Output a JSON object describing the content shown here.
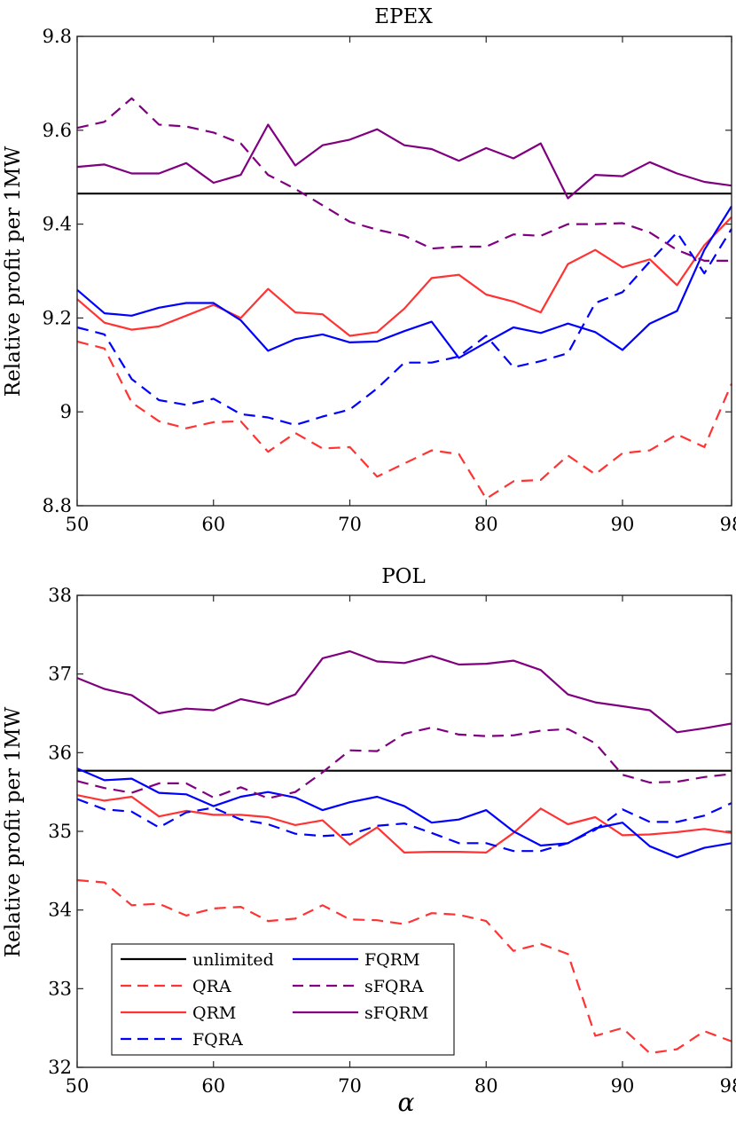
{
  "chart_data": [
    {
      "type": "line",
      "title": "EPEX",
      "xlabel": "",
      "ylabel": "Relative profit per 1MW",
      "xlim": [
        50,
        98
      ],
      "ylim": [
        8.8,
        9.8
      ],
      "xticks": [
        50,
        60,
        70,
        80,
        90,
        98
      ],
      "yticks": [
        8.8,
        9,
        9.2,
        9.4,
        9.6,
        9.8
      ],
      "xtick_labels": [
        "50",
        "60",
        "70",
        "80",
        "90",
        "98"
      ],
      "ytick_labels": [
        "8.8",
        "9",
        "9.2",
        "9.4",
        "9.6",
        "9.8"
      ],
      "x": [
        50,
        52,
        54,
        56,
        58,
        60,
        62,
        64,
        66,
        68,
        70,
        72,
        74,
        76,
        78,
        80,
        82,
        84,
        86,
        88,
        90,
        92,
        94,
        96,
        98
      ],
      "series": [
        {
          "name": "unlimited",
          "color": "#000000",
          "style": "solid",
          "values": [
            9.465,
            9.465,
            9.465,
            9.465,
            9.465,
            9.465,
            9.465,
            9.465,
            9.465,
            9.465,
            9.465,
            9.465,
            9.465,
            9.465,
            9.465,
            9.465,
            9.465,
            9.465,
            9.465,
            9.465,
            9.465,
            9.465,
            9.465,
            9.465,
            9.465
          ]
        },
        {
          "name": "QRA",
          "color": "#ff3333",
          "style": "dashed",
          "values": [
            9.15,
            9.135,
            9.02,
            8.98,
            8.965,
            8.978,
            8.98,
            8.915,
            8.955,
            8.922,
            8.925,
            8.862,
            8.89,
            8.918,
            8.91,
            8.815,
            8.852,
            8.855,
            8.907,
            8.867,
            8.912,
            8.918,
            8.952,
            8.925,
            9.06
          ]
        },
        {
          "name": "QRM",
          "color": "#ff3333",
          "style": "solid",
          "values": [
            9.24,
            9.19,
            9.175,
            9.182,
            9.205,
            9.228,
            9.2,
            9.262,
            9.212,
            9.208,
            9.162,
            9.17,
            9.22,
            9.285,
            9.292,
            9.25,
            9.235,
            9.212,
            9.315,
            9.345,
            9.308,
            9.325,
            9.27,
            9.355,
            9.415
          ]
        },
        {
          "name": "FQRA",
          "color": "#0000ff",
          "style": "dashed",
          "values": [
            9.18,
            9.165,
            9.07,
            9.025,
            9.015,
            9.028,
            8.995,
            8.988,
            8.972,
            8.99,
            9.005,
            9.05,
            9.105,
            9.105,
            9.118,
            9.162,
            9.095,
            9.108,
            9.125,
            9.232,
            9.255,
            9.32,
            9.382,
            9.295,
            9.39
          ]
        },
        {
          "name": "FQRM",
          "color": "#0000ff",
          "style": "solid",
          "values": [
            9.26,
            9.21,
            9.205,
            9.222,
            9.232,
            9.232,
            9.195,
            9.13,
            9.155,
            9.165,
            9.148,
            9.15,
            9.172,
            9.192,
            9.115,
            9.148,
            9.18,
            9.168,
            9.188,
            9.17,
            9.132,
            9.188,
            9.215,
            9.345,
            9.438
          ]
        },
        {
          "name": "sFQRA",
          "color": "#800080",
          "style": "dashed",
          "values": [
            9.605,
            9.618,
            9.668,
            9.612,
            9.608,
            9.595,
            9.572,
            9.505,
            9.475,
            9.44,
            9.405,
            9.388,
            9.375,
            9.348,
            9.352,
            9.352,
            9.378,
            9.375,
            9.4,
            9.4,
            9.402,
            9.382,
            9.345,
            9.322,
            9.322
          ]
        },
        {
          "name": "sFQRM",
          "color": "#800080",
          "style": "solid",
          "values": [
            9.522,
            9.527,
            9.508,
            9.508,
            9.53,
            9.488,
            9.505,
            9.612,
            9.525,
            9.568,
            9.58,
            9.602,
            9.568,
            9.56,
            9.535,
            9.562,
            9.54,
            9.572,
            9.455,
            9.505,
            9.502,
            9.532,
            9.508,
            9.49,
            9.482
          ]
        }
      ]
    },
    {
      "type": "line",
      "title": "POL",
      "xlabel": "α",
      "ylabel": "Relative profit per 1MW",
      "xlim": [
        50,
        98
      ],
      "ylim": [
        32,
        38
      ],
      "xticks": [
        50,
        60,
        70,
        80,
        90,
        98
      ],
      "yticks": [
        32,
        33,
        34,
        35,
        36,
        37,
        38
      ],
      "xtick_labels": [
        "50",
        "60",
        "70",
        "80",
        "90",
        "98"
      ],
      "ytick_labels": [
        "32",
        "33",
        "34",
        "35",
        "36",
        "37",
        "38"
      ],
      "legend_position": "bottom-left",
      "x": [
        50,
        52,
        54,
        56,
        58,
        60,
        62,
        64,
        66,
        68,
        70,
        72,
        74,
        76,
        78,
        80,
        82,
        84,
        86,
        88,
        90,
        92,
        94,
        96,
        98
      ],
      "series": [
        {
          "name": "unlimited",
          "color": "#000000",
          "style": "solid",
          "values": [
            35.77,
            35.77,
            35.77,
            35.77,
            35.77,
            35.77,
            35.77,
            35.77,
            35.77,
            35.77,
            35.77,
            35.77,
            35.77,
            35.77,
            35.77,
            35.77,
            35.77,
            35.77,
            35.77,
            35.77,
            35.77,
            35.77,
            35.77,
            35.77,
            35.77
          ]
        },
        {
          "name": "QRA",
          "color": "#ff3333",
          "style": "dashed",
          "values": [
            34.38,
            34.35,
            34.06,
            34.08,
            33.93,
            34.02,
            34.04,
            33.86,
            33.89,
            34.06,
            33.88,
            33.87,
            33.82,
            33.96,
            33.94,
            33.86,
            33.48,
            33.57,
            33.44,
            32.4,
            32.5,
            32.18,
            32.23,
            32.46,
            32.33
          ]
        },
        {
          "name": "QRM",
          "color": "#ff3333",
          "style": "solid",
          "values": [
            35.46,
            35.39,
            35.44,
            35.19,
            35.26,
            35.21,
            35.21,
            35.18,
            35.08,
            35.14,
            34.83,
            35.05,
            34.73,
            34.74,
            34.74,
            34.73,
            34.98,
            35.29,
            35.09,
            35.18,
            34.95,
            34.96,
            34.99,
            35.03,
            34.98
          ]
        },
        {
          "name": "FQRA",
          "color": "#0000ff",
          "style": "dashed",
          "values": [
            35.41,
            35.28,
            35.25,
            35.05,
            35.24,
            35.3,
            35.15,
            35.09,
            34.97,
            34.94,
            34.96,
            35.07,
            35.1,
            34.98,
            34.85,
            34.85,
            34.75,
            34.75,
            34.85,
            35.02,
            35.28,
            35.12,
            35.12,
            35.2,
            35.36
          ]
        },
        {
          "name": "FQRM",
          "color": "#0000ff",
          "style": "solid",
          "values": [
            35.8,
            35.65,
            35.67,
            35.49,
            35.47,
            35.32,
            35.44,
            35.5,
            35.43,
            35.27,
            35.37,
            35.44,
            35.32,
            35.11,
            35.15,
            35.27,
            35.0,
            34.82,
            34.85,
            35.04,
            35.11,
            34.81,
            34.67,
            34.79,
            34.85
          ]
        },
        {
          "name": "sFQRA",
          "color": "#800080",
          "style": "dashed",
          "values": [
            35.64,
            35.55,
            35.49,
            35.61,
            35.61,
            35.43,
            35.56,
            35.42,
            35.5,
            35.75,
            36.03,
            36.02,
            36.24,
            36.32,
            36.23,
            36.21,
            36.22,
            36.28,
            36.3,
            36.12,
            35.72,
            35.62,
            35.63,
            35.69,
            35.73
          ]
        },
        {
          "name": "sFQRM",
          "color": "#800080",
          "style": "solid",
          "values": [
            36.95,
            36.81,
            36.73,
            36.5,
            36.56,
            36.54,
            36.68,
            36.61,
            36.74,
            37.2,
            37.29,
            37.16,
            37.14,
            37.23,
            37.12,
            37.13,
            37.17,
            37.05,
            36.74,
            36.64,
            36.59,
            36.54,
            36.26,
            36.31,
            36.37
          ]
        }
      ]
    }
  ]
}
